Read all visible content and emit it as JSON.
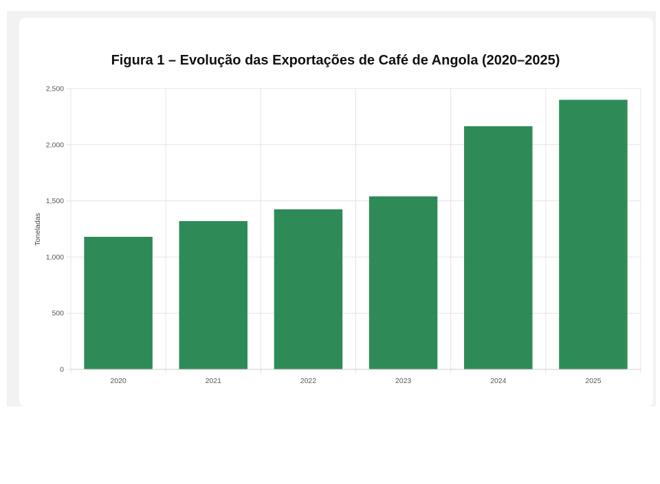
{
  "chart_data": {
    "type": "bar",
    "title": "Figura 1 – Evolução das Exportações de Café de Angola (2020–2025)",
    "xlabel": "",
    "ylabel": "Toneladas",
    "categories": [
      "2020",
      "2021",
      "2022",
      "2023",
      "2024",
      "2025"
    ],
    "values": [
      1180,
      1320,
      1425,
      1540,
      2165,
      2400
    ],
    "ylim": [
      0,
      2500
    ],
    "yticks": [
      0,
      500,
      1000,
      1500,
      2000,
      2500
    ],
    "ytick_labels": [
      "0",
      "500",
      "1,000",
      "1,500",
      "2,000",
      "2,500"
    ],
    "grid": true,
    "legend": "none",
    "bar_color": "#2e8b57"
  }
}
